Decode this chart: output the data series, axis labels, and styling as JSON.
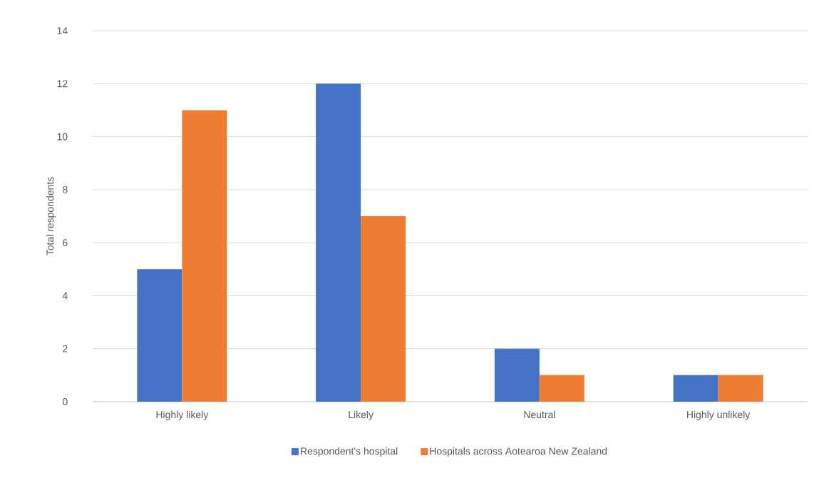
{
  "chart_data": {
    "type": "bar",
    "ylabel": "Total respondents",
    "categories": [
      "Highly likely",
      "Likely",
      "Neutral",
      "Highly unlikely"
    ],
    "series": [
      {
        "name": "Respondent's hospital",
        "color": "#4472c4",
        "values": [
          5,
          12,
          2,
          1
        ]
      },
      {
        "name": "Hospitals across Aotearoa New Zealand",
        "color": "#ed7d31",
        "values": [
          11,
          7,
          1,
          1
        ]
      }
    ],
    "ylim": [
      0,
      14
    ],
    "yticks": [
      0,
      2,
      4,
      6,
      8,
      10,
      12,
      14
    ],
    "grid": "y",
    "legend": "bottom"
  }
}
